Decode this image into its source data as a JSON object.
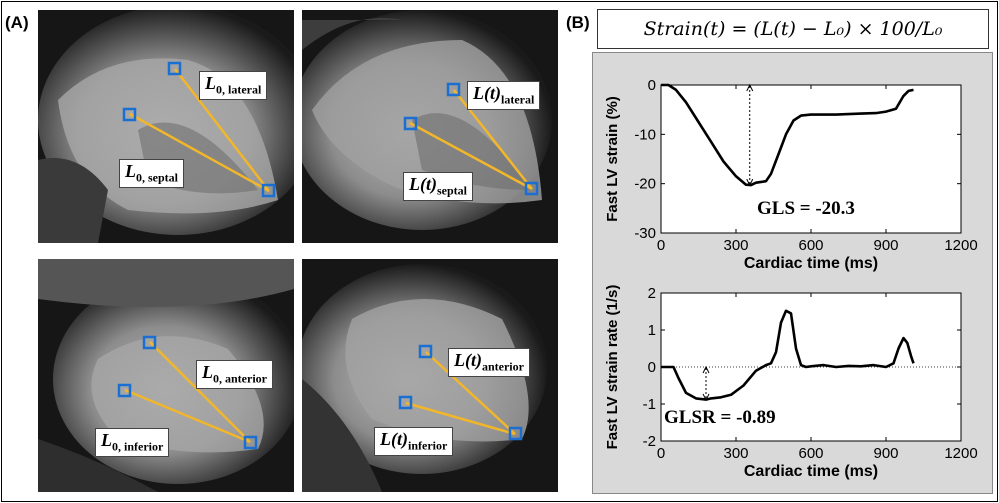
{
  "panel_a": {
    "label": "(A)",
    "images": [
      {
        "labels": [
          {
            "base": "L",
            "mid": "0, lateral",
            "sub": "lateral"
          },
          {
            "base": "L",
            "mid": "0, septal",
            "sub": "septal"
          }
        ]
      }
    ],
    "tags": {
      "l0_lateral_main": "L",
      "l0_lateral_sub": "0, lateral",
      "l0_septal_main": "L",
      "l0_septal_sub": "0, septal",
      "lt_lateral_main": "L(t)",
      "lt_lateral_sub": "lateral",
      "lt_septal_main": "L(t)",
      "lt_septal_sub": "septal",
      "l0_anterior_main": "L",
      "l0_anterior_sub": "0, anterior",
      "l0_inferior_main": "L",
      "l0_inferior_sub": "0, inferior",
      "lt_anterior_main": "L(t)",
      "lt_anterior_sub": "anterior",
      "lt_inferior_main": "L(t)",
      "lt_inferior_sub": "inferior"
    }
  },
  "panel_b": {
    "label": "(B)",
    "formula": "Strain(t) = (L(t) − L₀) × 100/L₀"
  },
  "chart_data": [
    {
      "type": "line",
      "title": "",
      "xlabel": "Cardiac time (ms)",
      "ylabel": "Fast LV strain (%)",
      "xlim": [
        0,
        1200
      ],
      "ylim": [
        -30,
        0
      ],
      "xticks": [
        "0",
        "300",
        "600",
        "900",
        "1200"
      ],
      "yticks": [
        "0",
        "-10",
        "-20",
        "-30"
      ],
      "series": [
        {
          "x": [
            0,
            30,
            60,
            100,
            150,
            200,
            250,
            300,
            340,
            360,
            380,
            420,
            440,
            470,
            500,
            530,
            560,
            600,
            700,
            800,
            860,
            900,
            940,
            970,
            990,
            1010
          ],
          "y": [
            0,
            0,
            -1,
            -3.5,
            -7.5,
            -11.5,
            -15.5,
            -18.5,
            -20.2,
            -20.3,
            -19.8,
            -19.5,
            -18,
            -14,
            -10,
            -7.2,
            -6.2,
            -6,
            -6,
            -5.8,
            -5.7,
            -5.4,
            -4.8,
            -2.2,
            -1.2,
            -1
          ]
        }
      ],
      "annotation": {
        "text": "GLS = -20.3",
        "arrow_x": 355,
        "arrow_from": 0,
        "arrow_to": -20.3
      },
      "grid": false
    },
    {
      "type": "line",
      "title": "",
      "xlabel": "Cardiac time (ms)",
      "ylabel": "Fast LV strain rate (1/s)",
      "xlim": [
        0,
        1200
      ],
      "ylim": [
        -2,
        2
      ],
      "xticks": [
        "0",
        "300",
        "600",
        "900",
        "1200"
      ],
      "yticks": [
        "2",
        "1",
        "0",
        "-1",
        "-2"
      ],
      "series": [
        {
          "x": [
            0,
            50,
            70,
            100,
            140,
            180,
            200,
            240,
            280,
            330,
            380,
            420,
            440,
            460,
            480,
            500,
            520,
            540,
            560,
            580,
            600,
            650,
            700,
            750,
            800,
            850,
            900,
            930,
            950,
            970,
            985,
            1000,
            1010
          ],
          "y": [
            0,
            0,
            -0.3,
            -0.7,
            -0.85,
            -0.88,
            -0.85,
            -0.82,
            -0.75,
            -0.5,
            -0.1,
            0.05,
            0.1,
            0.4,
            1.2,
            1.52,
            1.45,
            0.5,
            0.05,
            0.0,
            0.02,
            0.05,
            0.0,
            0.03,
            0.02,
            0.05,
            0.0,
            0.1,
            0.5,
            0.78,
            0.65,
            0.3,
            0.1
          ]
        }
      ],
      "zero_line": true,
      "annotation": {
        "text": "GLSR = -0.89",
        "arrow_x": 180,
        "arrow_from": 0,
        "arrow_to": -0.89
      },
      "grid": false
    }
  ]
}
